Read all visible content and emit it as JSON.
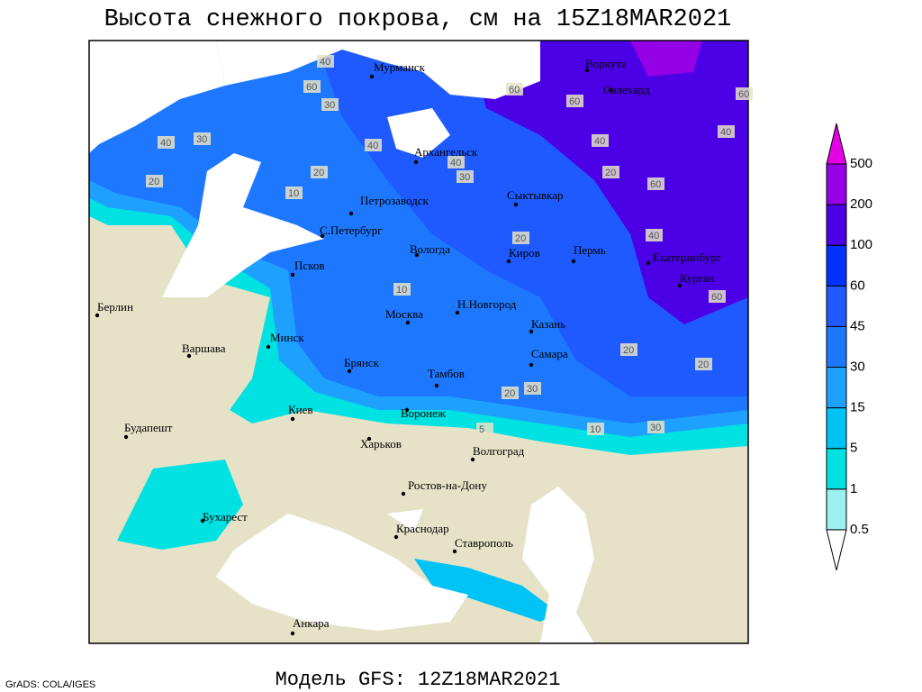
{
  "header": {
    "title": "Высота снежного покрова, см на 15Z18MAR2021"
  },
  "footer": {
    "model": "Модель GFS: 12Z18MAR2021",
    "credit": "GrADS: COLA/IGES"
  },
  "cities": [
    "Мурманск",
    "Воркута",
    "Салехард",
    "Архангельск",
    "Сыктывкар",
    "Петрозаводск",
    "С.Петербург",
    "Псков",
    "Вологда",
    "Киров",
    "Пермь",
    "Екатеринбург",
    "Курган",
    "Берлин",
    "Минск",
    "Москва",
    "Н.Новгород",
    "Казань",
    "Варшава",
    "Брянск",
    "Тамбов",
    "Самара",
    "Киев",
    "Воронеж",
    "Будапешт",
    "Харьков",
    "Волгоград",
    "Ростов-на-Дону",
    "Бухарест",
    "Краснодар",
    "Ставрополь",
    "Анкара"
  ],
  "contour_labels": [
    40,
    60,
    30,
    40,
    20,
    30,
    40,
    20,
    10,
    60,
    60,
    40,
    20,
    40,
    60,
    60,
    40,
    20,
    10,
    20,
    30,
    20,
    30,
    10,
    5,
    60,
    30,
    20,
    40
  ],
  "legend": {
    "levels": [
      0.5,
      1,
      5,
      15,
      30,
      45,
      60,
      100,
      200,
      500
    ],
    "colors": [
      "#9bf0f0",
      "#00e1e1",
      "#00c3f5",
      "#1ea0ff",
      "#1e78ff",
      "#1e5aff",
      "#0032ff",
      "#4b00e6",
      "#9600e6"
    ],
    "below_color": "#ffffff",
    "above_color": "#e600e6"
  }
}
